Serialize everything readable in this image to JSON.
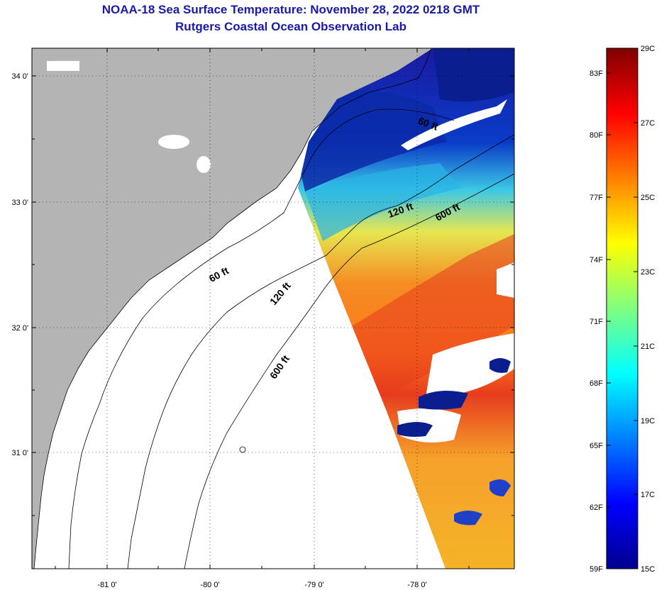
{
  "title": {
    "line1": "NOAA-18 Sea Surface Temperature:  November 28, 2022 0218 GMT",
    "line2": "Rutgers Coastal Ocean Observation Lab"
  },
  "map": {
    "lat_ticks": [
      "34 0'",
      "33 0'",
      "32 0'",
      "31 0'"
    ],
    "lon_ticks": [
      "-81 0'",
      "-80 0'",
      "-79 0'",
      "-78 0'"
    ],
    "contours": [
      {
        "label": "60 ft"
      },
      {
        "label": "120 ft"
      },
      {
        "label": "600 ft"
      },
      {
        "label": "60 ft"
      },
      {
        "label": "120 ft"
      },
      {
        "label": "600 ft"
      }
    ],
    "colors": {
      "land": "#b4b4b4",
      "cloud": "#ffffff",
      "frame": "#000000"
    }
  },
  "colorbar": {
    "fahrenheit_ticks": [
      "83F",
      "80F",
      "77F",
      "74F",
      "71F",
      "68F",
      "65F",
      "62F",
      "59F"
    ],
    "celsius_ticks": [
      "29C",
      "27C",
      "25C",
      "23C",
      "21C",
      "19C",
      "17C",
      "15C"
    ],
    "colormap": "jet",
    "range_c": [
      15,
      29
    ]
  }
}
